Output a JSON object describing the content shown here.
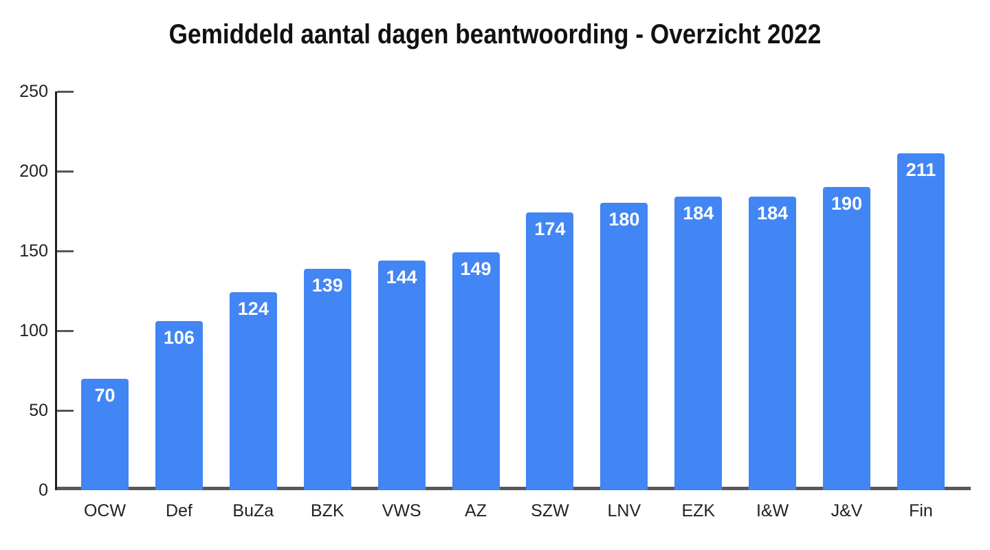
{
  "chart_data": {
    "type": "bar",
    "title": "Gemiddeld aantal dagen beantwoording - Overzicht 2022",
    "categories": [
      "OCW",
      "Def",
      "BuZa",
      "BZK",
      "VWS",
      "AZ",
      "SZW",
      "LNV",
      "EZK",
      "I&W",
      "J&V",
      "Fin"
    ],
    "values": [
      70,
      106,
      124,
      139,
      144,
      149,
      174,
      180,
      184,
      184,
      190,
      211
    ],
    "xlabel": "",
    "ylabel": "",
    "ylim": [
      0,
      250
    ],
    "yticks": [
      0,
      50,
      100,
      150,
      200,
      250
    ],
    "grid": false,
    "legend": "none",
    "value_labels": true,
    "colors": {
      "bar": "#4285f4",
      "value_label": "#ffffff",
      "x_axis_line": "#58595b",
      "y_axis_line": "#1f1f1f",
      "tick": "#555555",
      "axis_text": "#222222",
      "title_text": "#111111",
      "background": "#ffffff"
    }
  }
}
